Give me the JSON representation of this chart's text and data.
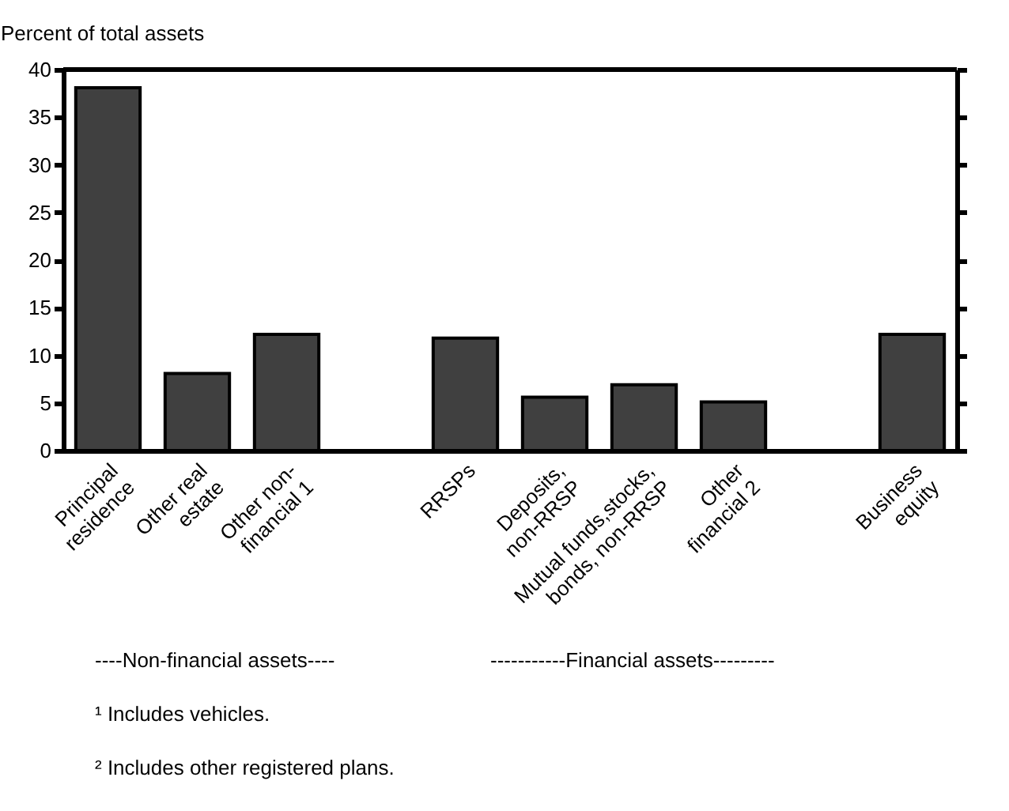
{
  "chart_data": {
    "type": "bar",
    "ylabel": "Percent of total assets",
    "categories": [
      "Principal residence",
      "Other real estate",
      "Other non-financial 1",
      null,
      "RRSPs",
      "Deposits, non-RRSP",
      "Mutual funds,stocks, bonds, non-RRSP",
      "Other financial 2",
      null,
      "Business equity"
    ],
    "values": [
      38.1,
      8.1,
      12.2,
      null,
      11.8,
      5.6,
      6.9,
      5.1,
      null,
      12.2
    ],
    "color": "#404040",
    "ylim": [
      0,
      40
    ],
    "yticks": [
      0,
      5,
      10,
      15,
      20,
      25,
      30,
      35,
      40
    ],
    "grid": false,
    "annotations": [
      "----Non-financial assets----",
      "-----------Financial assets---------",
      "¹    Includes vehicles.",
      "²    Includes other registered plans."
    ]
  }
}
